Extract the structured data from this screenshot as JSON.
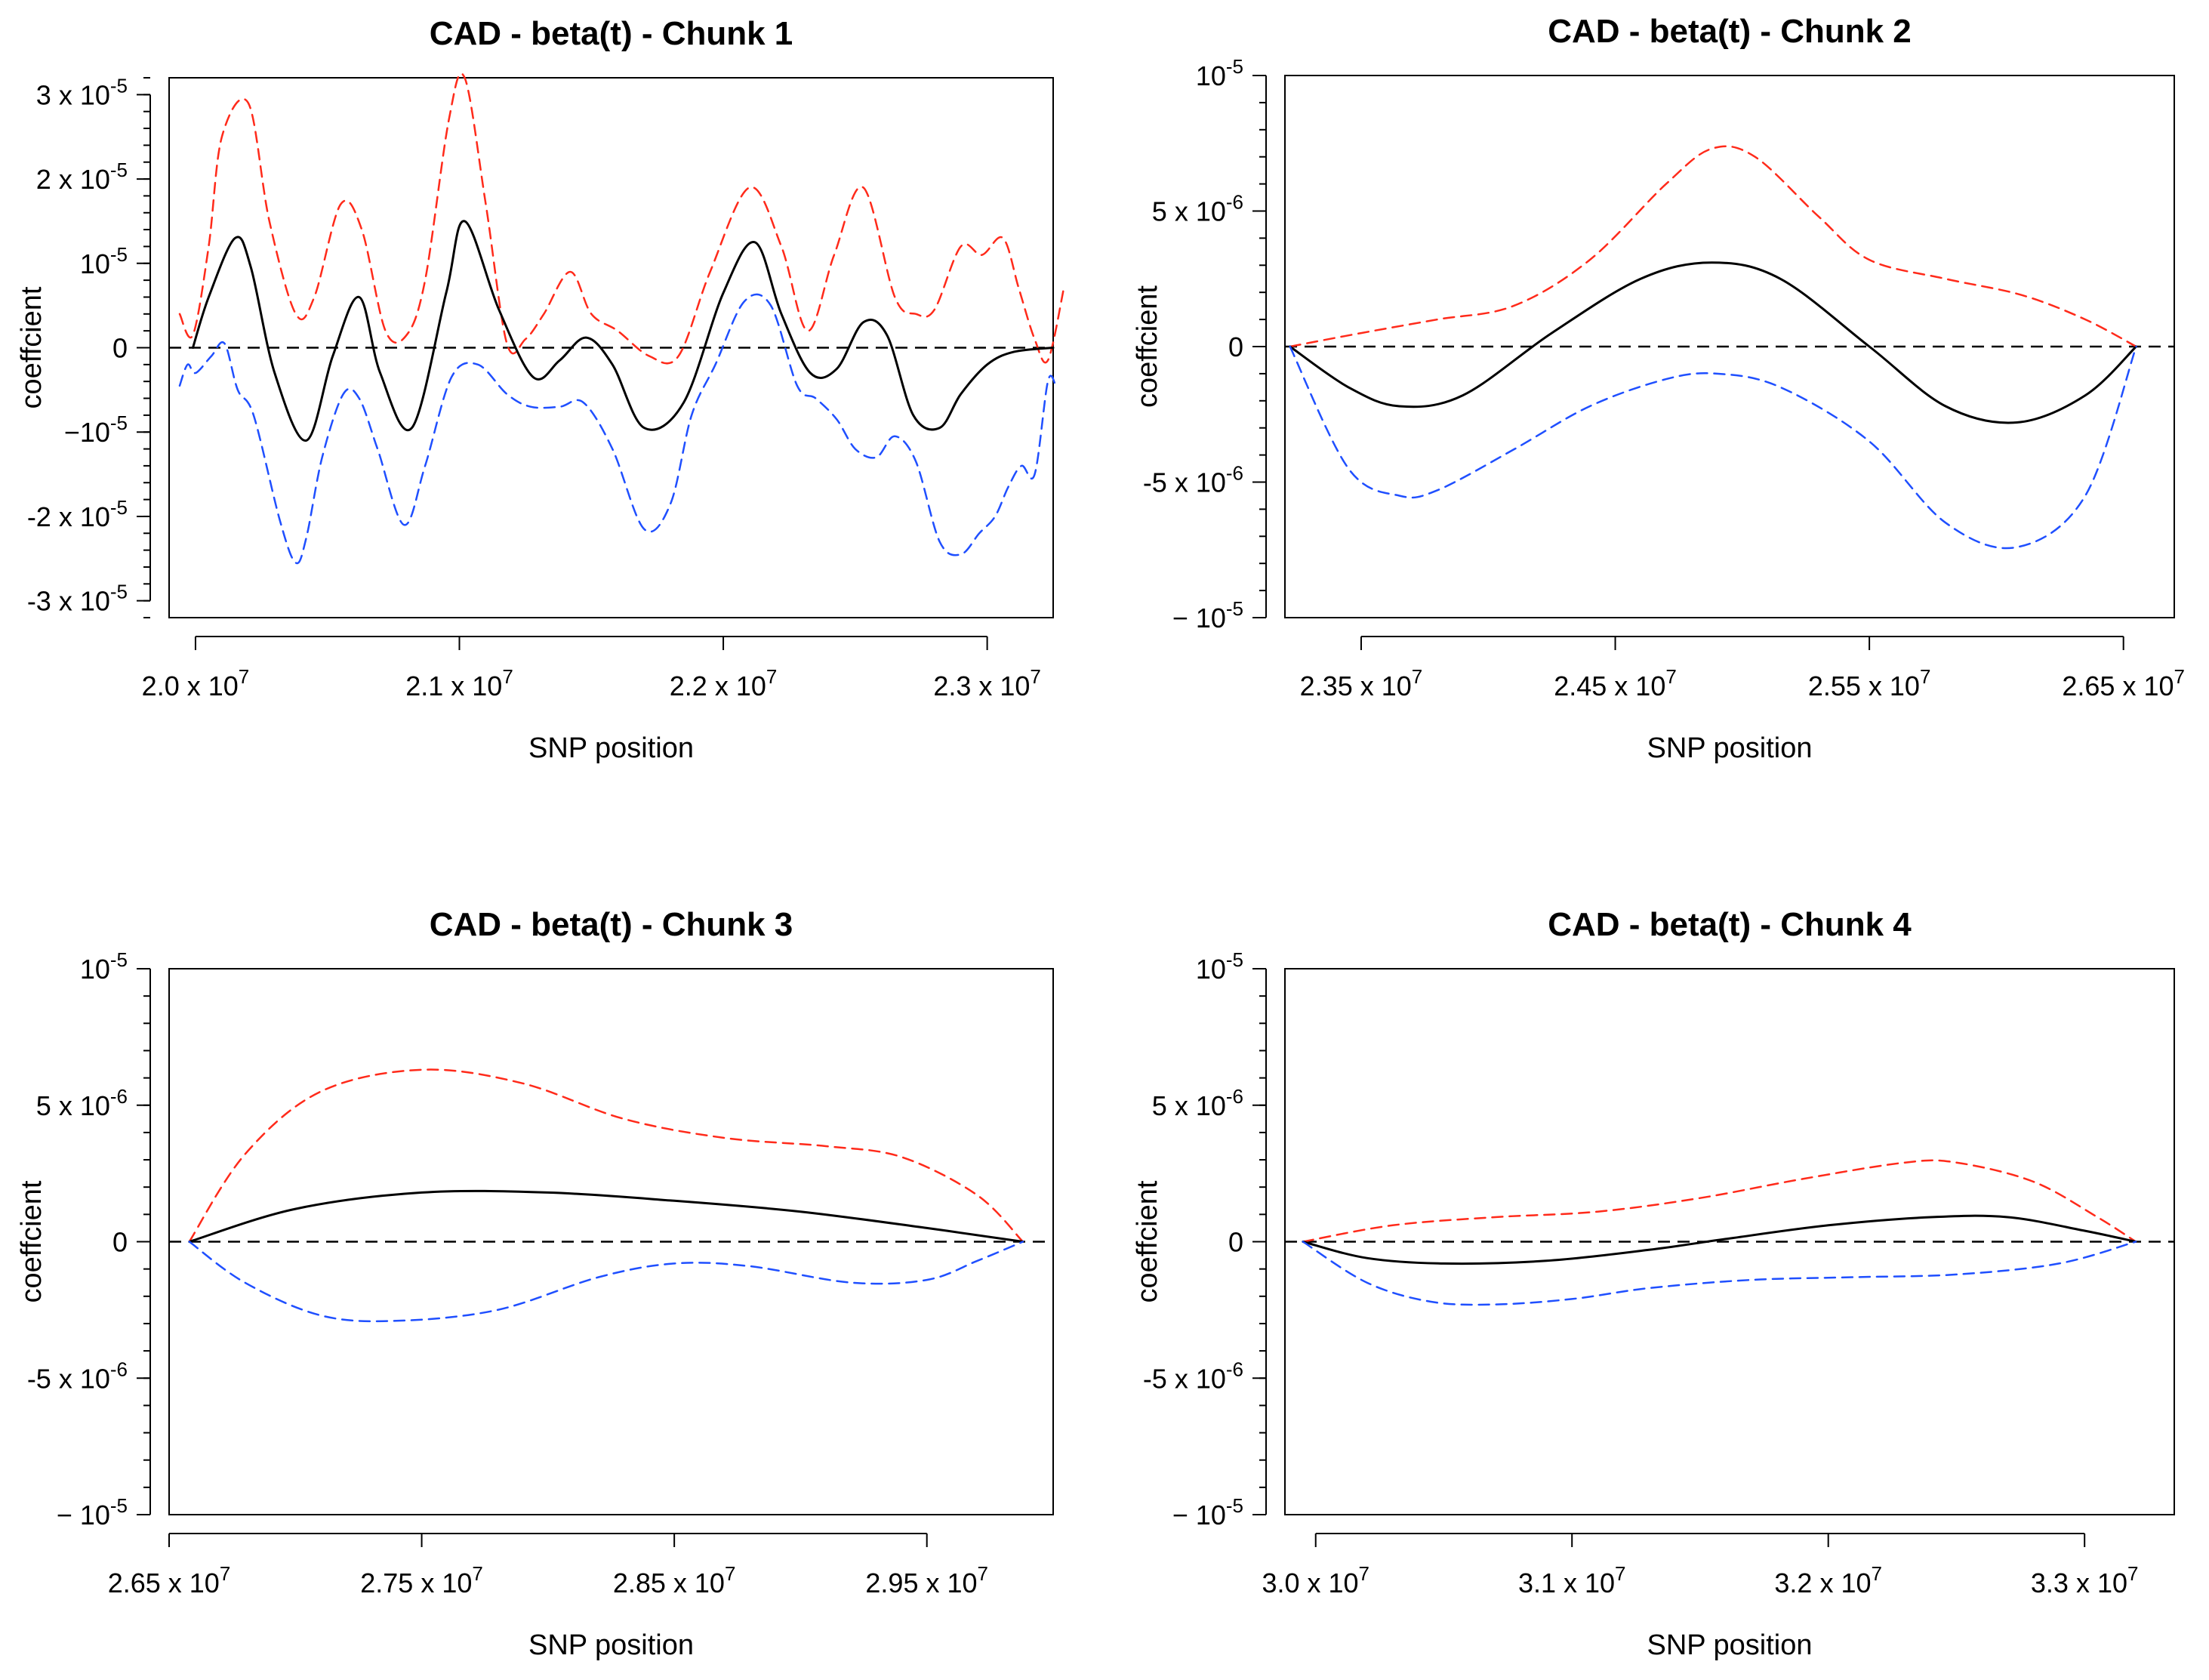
{
  "chart_data": [
    {
      "type": "line",
      "title": "CAD - beta(t) - Chunk 1",
      "xlabel": "SNP position",
      "ylabel": "coeffcient",
      "xlim": [
        19900000,
        23250000
      ],
      "ylim": [
        -3.2e-05,
        3.2e-05
      ],
      "x_ticks": [
        {
          "value": 20000000,
          "mant": "2.0 x 10",
          "exp": "7"
        },
        {
          "value": 21000000,
          "mant": "2.1 x 10",
          "exp": "7"
        },
        {
          "value": 22000000,
          "mant": "2.2 x 10",
          "exp": "7"
        },
        {
          "value": 23000000,
          "mant": "2.3 x 10",
          "exp": "7"
        }
      ],
      "y_ticks": [
        {
          "value": 3e-05,
          "mant": "3 x 10",
          "exp": "-5"
        },
        {
          "value": 2e-05,
          "mant": "2 x 10",
          "exp": "-5"
        },
        {
          "value": 1e-05,
          "mant": "10",
          "exp": "-5"
        },
        {
          "value": 0,
          "mant": "0",
          "exp": ""
        },
        {
          "value": -1e-05,
          "mant": "−10",
          "exp": "-5"
        },
        {
          "value": -2e-05,
          "mant": "-2 x 10",
          "exp": "-5"
        },
        {
          "value": -3e-05,
          "mant": "-3 x 10",
          "exp": "-5"
        }
      ],
      "y_minor_step": 2e-06,
      "reference_line": 0,
      "series": [
        {
          "color": "#ff2a1a",
          "style": "dashed",
          "x": [
            19940000,
            19990000,
            20050000,
            20100000,
            20200000,
            20280000,
            20380000,
            20450000,
            20550000,
            20630000,
            20720000,
            20800000,
            20870000,
            20960000,
            21020000,
            21100000,
            21180000,
            21250000,
            21320000,
            21420000,
            21500000,
            21600000,
            21720000,
            21830000,
            21950000,
            22100000,
            22220000,
            22320000,
            22420000,
            22530000,
            22650000,
            22730000,
            22800000,
            22900000,
            22980000,
            23060000,
            23120000,
            23180000,
            23230000,
            23290000
          ],
          "y": [
            4e-06,
            1.5e-06,
            1.2e-05,
            2.5e-05,
            2.9e-05,
            1.5e-05,
            4e-06,
            6e-06,
            1.7e-05,
            1.4e-05,
            2e-06,
            1.5e-06,
            8e-06,
            2.7e-05,
            3.2e-05,
            1.7e-05,
            5e-07,
            1e-06,
            4e-06,
            9e-06,
            4e-06,
            2e-06,
            -1e-06,
            -1e-06,
            9e-06,
            1.9e-05,
            1.2e-05,
            2e-06,
            1.1e-05,
            1.9e-05,
            6e-06,
            4e-06,
            4.5e-06,
            1.2e-05,
            1.1e-05,
            1.3e-05,
            7e-06,
            1e-06,
            -1.5e-06,
            7e-06
          ]
        },
        {
          "color": "#000000",
          "style": "solid",
          "x": [
            19990000,
            20050000,
            20150000,
            20210000,
            20300000,
            20420000,
            20520000,
            20620000,
            20700000,
            20820000,
            20950000,
            21020000,
            21150000,
            21280000,
            21380000,
            21480000,
            21580000,
            21700000,
            21850000,
            22000000,
            22120000,
            22220000,
            22330000,
            22430000,
            22530000,
            22620000,
            22720000,
            22820000,
            22900000,
            23000000,
            23100000,
            23250000
          ],
          "y": [
            0,
            6e-06,
            1.3e-05,
            9.5e-06,
            -3e-06,
            -1.1e-05,
            -1e-06,
            6e-06,
            -3e-06,
            -9.5e-06,
            6.5e-06,
            1.5e-05,
            4.5e-06,
            -3.5e-06,
            -1.5e-06,
            1.2e-06,
            -2e-06,
            -9.5e-06,
            -6.5e-06,
            6.5e-06,
            1.25e-05,
            4e-06,
            -3e-06,
            -2.5e-06,
            3e-06,
            1.5e-06,
            -8e-06,
            -9.5e-06,
            -5.5e-06,
            -2e-06,
            -5e-07,
            0
          ]
        },
        {
          "color": "#1f4fff",
          "style": "dashed",
          "x": [
            19940000,
            19970000,
            20000000,
            20060000,
            20110000,
            20160000,
            20220000,
            20320000,
            20380000,
            20420000,
            20480000,
            20560000,
            20620000,
            20690000,
            20790000,
            20870000,
            20970000,
            21070000,
            21180000,
            21270000,
            21380000,
            21470000,
            21580000,
            21700000,
            21800000,
            21880000,
            21970000,
            22080000,
            22180000,
            22280000,
            22350000,
            22430000,
            22500000,
            22580000,
            22650000,
            22730000,
            22820000,
            22900000,
            22970000,
            23030000,
            23080000,
            23130000,
            23180000,
            23230000,
            23260000
          ],
          "y": [
            -4.5e-06,
            -2e-06,
            -3e-06,
            -1e-06,
            5e-07,
            -5e-06,
            -8e-06,
            -2.05e-05,
            -2.55e-05,
            -2.25e-05,
            -1.3e-05,
            -5.5e-06,
            -6e-06,
            -1.2e-05,
            -2.1e-05,
            -1.4e-05,
            -3.5e-06,
            -2e-06,
            -5.5e-06,
            -7e-06,
            -7e-06,
            -6.5e-06,
            -1.2e-05,
            -2.15e-05,
            -1.85e-05,
            -8e-06,
            -2e-06,
            5.5e-06,
            5e-06,
            -4.5e-06,
            -6e-06,
            -8.5e-06,
            -1.2e-05,
            -1.3e-05,
            -1.05e-05,
            -1.35e-05,
            -2.3e-05,
            -2.45e-05,
            -2.2e-05,
            -2e-05,
            -1.65e-05,
            -1.4e-05,
            -1.5e-05,
            -4e-06,
            -4.5e-06
          ]
        }
      ]
    },
    {
      "type": "line",
      "title": "CAD - beta(t) - Chunk 2",
      "xlabel": "SNP position",
      "ylabel": "coeffcient",
      "xlim": [
        23200000,
        26700000
      ],
      "ylim": [
        -1e-05,
        1e-05
      ],
      "x_ticks": [
        {
          "value": 23500000,
          "mant": "2.35 x 10",
          "exp": "7"
        },
        {
          "value": 24500000,
          "mant": "2.45 x 10",
          "exp": "7"
        },
        {
          "value": 25500000,
          "mant": "2.55 x 10",
          "exp": "7"
        },
        {
          "value": 26500000,
          "mant": "2.65 x 10",
          "exp": "7"
        }
      ],
      "y_ticks": [
        {
          "value": 1e-05,
          "mant": "10",
          "exp": "-5"
        },
        {
          "value": 5e-06,
          "mant": "5 x 10",
          "exp": "-6"
        },
        {
          "value": 0,
          "mant": "0",
          "exp": ""
        },
        {
          "value": -5e-06,
          "mant": "-5 x 10",
          "exp": "-6"
        },
        {
          "value": -1e-05,
          "mant": "− 10",
          "exp": "-5"
        }
      ],
      "y_minor_step": 1e-06,
      "reference_line": 0,
      "series": [
        {
          "color": "#ff2a1a",
          "style": "dashed",
          "x": [
            23220000,
            23500000,
            23800000,
            24100000,
            24400000,
            24700000,
            24880000,
            25050000,
            25300000,
            25500000,
            25800000,
            26100000,
            26350000,
            26550000
          ],
          "y": [
            0,
            5e-07,
            1e-06,
            1.5e-06,
            3.2e-06,
            6e-06,
            7.3e-06,
            7e-06,
            4.8e-06,
            3.2e-06,
            2.5e-06,
            1.9e-06,
            1e-06,
            0
          ]
        },
        {
          "color": "#000000",
          "style": "solid",
          "x": [
            23220000,
            23450000,
            23650000,
            23900000,
            24250000,
            24600000,
            24880000,
            25150000,
            25500000,
            25800000,
            26080000,
            26350000,
            26550000
          ],
          "y": [
            0,
            -1.5e-06,
            -2.2e-06,
            -1.8e-06,
            5e-07,
            2.5e-06,
            3.1e-06,
            2.5e-06,
            0,
            -2.2e-06,
            -2.8e-06,
            -1.8e-06,
            0
          ]
        },
        {
          "color": "#1f4fff",
          "style": "dashed",
          "x": [
            23220000,
            23450000,
            23650000,
            23800000,
            24100000,
            24400000,
            24700000,
            24900000,
            25150000,
            25500000,
            25800000,
            26080000,
            26350000,
            26550000
          ],
          "y": [
            0,
            -4.5e-06,
            -5.5e-06,
            -5.3e-06,
            -3.8e-06,
            -2.2e-06,
            -1.2e-06,
            -1e-06,
            -1.5e-06,
            -3.5e-06,
            -6.5e-06,
            -7.4e-06,
            -5.5e-06,
            0
          ]
        }
      ]
    },
    {
      "type": "line",
      "title": "CAD - beta(t) - Chunk 3",
      "xlabel": "SNP position",
      "ylabel": "coeffcient",
      "xlim": [
        26500000,
        30000000
      ],
      "ylim": [
        -1e-05,
        1e-05
      ],
      "x_ticks": [
        {
          "value": 26500000,
          "mant": "2.65 x 10",
          "exp": "7"
        },
        {
          "value": 27500000,
          "mant": "2.75 x 10",
          "exp": "7"
        },
        {
          "value": 28500000,
          "mant": "2.85 x 10",
          "exp": "7"
        },
        {
          "value": 29500000,
          "mant": "2.95 x 10",
          "exp": "7"
        }
      ],
      "y_ticks": [
        {
          "value": 1e-05,
          "mant": "10",
          "exp": "-5"
        },
        {
          "value": 5e-06,
          "mant": "5 x 10",
          "exp": "-6"
        },
        {
          "value": 0,
          "mant": "0",
          "exp": ""
        },
        {
          "value": -5e-06,
          "mant": "-5 x 10",
          "exp": "-6"
        },
        {
          "value": -1e-05,
          "mant": "− 10",
          "exp": "-5"
        }
      ],
      "y_minor_step": 1e-06,
      "reference_line": 0,
      "series": [
        {
          "color": "#ff2a1a",
          "style": "dashed",
          "x": [
            26580000,
            26800000,
            27100000,
            27500000,
            27900000,
            28300000,
            28700000,
            29100000,
            29400000,
            29700000,
            29880000
          ],
          "y": [
            0,
            3.2e-06,
            5.5e-06,
            6.3e-06,
            5.8e-06,
            4.5e-06,
            3.8e-06,
            3.5e-06,
            3.1e-06,
            1.7e-06,
            0
          ]
        },
        {
          "color": "#000000",
          "style": "solid",
          "x": [
            26580000,
            27000000,
            27500000,
            28000000,
            28500000,
            29000000,
            29500000,
            29880000
          ],
          "y": [
            0,
            1.2e-06,
            1.8e-06,
            1.8e-06,
            1.5e-06,
            1.1e-06,
            5e-07,
            0
          ]
        },
        {
          "color": "#1f4fff",
          "style": "dashed",
          "x": [
            26580000,
            26800000,
            27100000,
            27400000,
            27800000,
            28200000,
            28500000,
            28800000,
            29200000,
            29500000,
            29700000,
            29880000
          ],
          "y": [
            0,
            -1.5e-06,
            -2.7e-06,
            -2.9e-06,
            -2.5e-06,
            -1.3e-06,
            -8e-07,
            -9e-07,
            -1.5e-06,
            -1.4e-06,
            -7e-07,
            0
          ]
        }
      ]
    },
    {
      "type": "line",
      "title": "CAD - beta(t) - Chunk 4",
      "xlabel": "SNP position",
      "ylabel": "coeffcient",
      "xlim": [
        29880000,
        33350000
      ],
      "ylim": [
        -1e-05,
        1e-05
      ],
      "x_ticks": [
        {
          "value": 30000000,
          "mant": "3.0 x 10",
          "exp": "7"
        },
        {
          "value": 31000000,
          "mant": "3.1 x 10",
          "exp": "7"
        },
        {
          "value": 32000000,
          "mant": "3.2 x 10",
          "exp": "7"
        },
        {
          "value": 33000000,
          "mant": "3.3 x 10",
          "exp": "7"
        }
      ],
      "y_ticks": [
        {
          "value": 1e-05,
          "mant": "10",
          "exp": "-5"
        },
        {
          "value": 5e-06,
          "mant": "5 x 10",
          "exp": "-6"
        },
        {
          "value": 0,
          "mant": "0",
          "exp": ""
        },
        {
          "value": -5e-06,
          "mant": "-5 x 10",
          "exp": "-6"
        },
        {
          "value": -1e-05,
          "mant": "− 10",
          "exp": "-5"
        }
      ],
      "y_minor_step": 1e-06,
      "reference_line": 0,
      "series": [
        {
          "color": "#ff2a1a",
          "style": "dashed",
          "x": [
            29950000,
            30300000,
            30700000,
            31100000,
            31500000,
            31900000,
            32300000,
            32500000,
            32800000,
            33050000,
            33200000
          ],
          "y": [
            0,
            6e-07,
            9e-07,
            1.1e-06,
            1.6e-06,
            2.3e-06,
            2.9e-06,
            2.9e-06,
            2.2e-06,
            9e-07,
            0
          ]
        },
        {
          "color": "#000000",
          "style": "solid",
          "x": [
            29950000,
            30200000,
            30500000,
            30900000,
            31300000,
            31600000,
            32000000,
            32400000,
            32700000,
            33000000,
            33200000
          ],
          "y": [
            0,
            -6e-07,
            -8e-07,
            -7e-07,
            -3e-07,
            1e-07,
            6e-07,
            9e-07,
            9e-07,
            4e-07,
            0
          ]
        },
        {
          "color": "#1f4fff",
          "style": "dashed",
          "x": [
            29950000,
            30200000,
            30450000,
            30700000,
            31000000,
            31300000,
            31700000,
            32100000,
            32500000,
            32900000,
            33200000
          ],
          "y": [
            0,
            -1.5e-06,
            -2.2e-06,
            -2.3e-06,
            -2.1e-06,
            -1.7e-06,
            -1.4e-06,
            -1.3e-06,
            -1.2e-06,
            -8e-07,
            0
          ]
        }
      ]
    }
  ]
}
